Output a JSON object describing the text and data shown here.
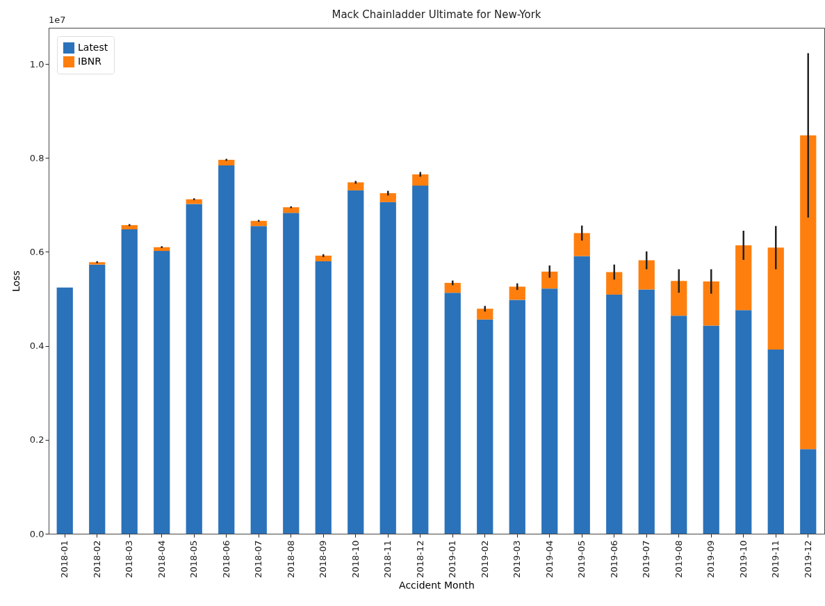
{
  "chart_data": {
    "type": "bar",
    "title": "Mack Chainladder Ultimate for New-York",
    "xlabel": "Accident Month",
    "ylabel": "Loss",
    "stacked": true,
    "legend": "top left",
    "annotations": [
      "1e7"
    ],
    "categories": [
      "2018-01",
      "2018-02",
      "2018-03",
      "2018-04",
      "2018-05",
      "2018-06",
      "2018-07",
      "2018-08",
      "2018-09",
      "2018-10",
      "2018-11",
      "2018-12",
      "2019-01",
      "2019-02",
      "2019-03",
      "2019-04",
      "2019-05",
      "2019-06",
      "2019-07",
      "2019-08",
      "2019-09",
      "2019-10",
      "2019-11",
      "2019-12"
    ],
    "ylim": [
      0,
      1.077
    ],
    "yticks": [
      {
        "value": 0,
        "label": "0.0"
      },
      0.2,
      0.4,
      0.6,
      0.8,
      {
        "value": 1,
        "label": "1.0"
      }
    ],
    "series": [
      {
        "name": "Latest",
        "color": "#2a72ba",
        "values": [
          0.524,
          0.573,
          0.648,
          0.602,
          0.702,
          0.784,
          0.655,
          0.683,
          0.58,
          0.731,
          0.706,
          0.741,
          0.513,
          0.456,
          0.498,
          0.522,
          0.591,
          0.509,
          0.52,
          0.464,
          0.443,
          0.476,
          0.392,
          0.18
        ]
      },
      {
        "name": "IBNR",
        "color": "#ff7f0e",
        "values": [
          0,
          0.005,
          0.009,
          0.008,
          0.01,
          0.012,
          0.011,
          0.012,
          0.012,
          0.017,
          0.019,
          0.024,
          0.021,
          0.023,
          0.028,
          0.036,
          0.049,
          0.048,
          0.062,
          0.074,
          0.094,
          0.138,
          0.217,
          0.668
        ],
        "errors": [
          null,
          0.002,
          0.002,
          0.002,
          0.002,
          0.002,
          0.002,
          0.002,
          0.003,
          0.003,
          0.005,
          0.005,
          0.005,
          0.006,
          0.007,
          0.013,
          0.016,
          0.016,
          0.019,
          0.025,
          0.026,
          0.031,
          0.046,
          0.175
        ]
      }
    ]
  }
}
